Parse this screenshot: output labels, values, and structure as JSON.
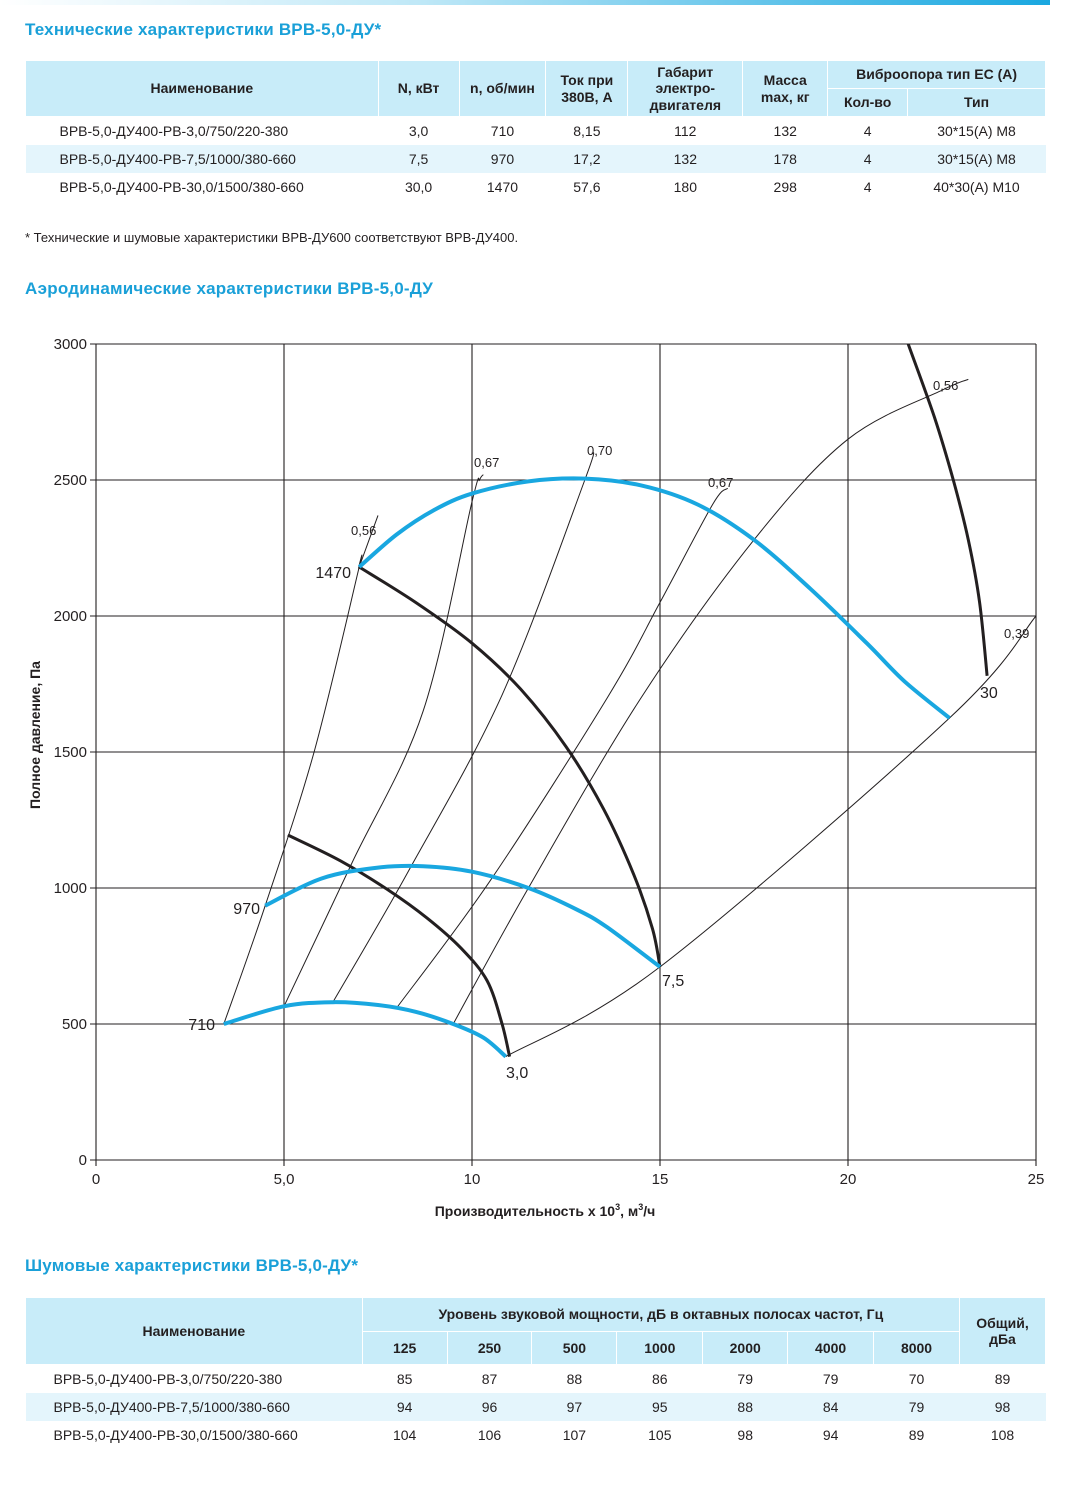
{
  "tech": {
    "title": "Технические характеристики ВРВ-5,0-ДУ*",
    "headers": {
      "name": "Наименование",
      "power": "N, кВт",
      "rpm": "n, об/мин",
      "current_l1": "Ток при",
      "current_l2": "380В, А",
      "size_l1": "Габарит",
      "size_l2": "электро-",
      "size_l3": "двигателя",
      "mass_l1": "Масса",
      "mass_l2": "max, кг",
      "vibro": "Виброопора тип ЕС (А)",
      "qty": "Кол-во",
      "type": "Тип"
    },
    "rows": [
      {
        "name": "ВРВ-5,0-ДУ400-РВ-3,0/750/220-380",
        "power": "3,0",
        "rpm": "710",
        "current": "8,15",
        "size": "112",
        "mass": "132",
        "qty": "4",
        "type": "30*15(А) М8"
      },
      {
        "name": "ВРВ-5,0-ДУ400-РВ-7,5/1000/380-660",
        "power": "7,5",
        "rpm": "970",
        "current": "17,2",
        "size": "132",
        "mass": "178",
        "qty": "4",
        "type": "30*15(А) М8"
      },
      {
        "name": "ВРВ-5,0-ДУ400-РВ-30,0/1500/380-660",
        "power": "30,0",
        "rpm": "1470",
        "current": "57,6",
        "size": "180",
        "mass": "298",
        "qty": "4",
        "type": "40*30(А) М10"
      }
    ],
    "note": "* Технические и шумовые характеристики ВРВ-ДУ600 соответствуют ВРВ-ДУ400."
  },
  "aero": {
    "title": "Аэродинамические характеристики ВРВ-5,0-ДУ"
  },
  "chart_data": {
    "type": "line",
    "xlabel_main": "Производительность х 10",
    "xlabel_sup": "3",
    "xlabel_tail": ", м",
    "xlabel_sup2": "3",
    "xlabel_end": "/ч",
    "ylabel": "Полное давление, Па",
    "xlim": [
      0,
      25
    ],
    "ylim": [
      0,
      3000
    ],
    "x_ticks": [
      "0",
      "5,0",
      "10",
      "15",
      "20",
      "25"
    ],
    "y_ticks": [
      "0",
      "500",
      "1000",
      "1500",
      "2000",
      "2500",
      "3000"
    ],
    "grid": true,
    "colors": {
      "speed_curves": "#19a7e0",
      "power_curves": "#231f20",
      "grid": "#231f20"
    },
    "speed_curves": [
      {
        "label": "710",
        "points": [
          [
            3.4,
            500
          ],
          [
            5.0,
            565
          ],
          [
            6.3,
            580
          ],
          [
            7.5,
            570
          ],
          [
            8.5,
            545
          ],
          [
            9.5,
            500
          ],
          [
            10.3,
            450
          ],
          [
            10.9,
            380
          ]
        ]
      },
      {
        "label": "970",
        "points": [
          [
            4.5,
            935
          ],
          [
            6.0,
            1035
          ],
          [
            7.5,
            1075
          ],
          [
            8.7,
            1080
          ],
          [
            10.0,
            1060
          ],
          [
            11.5,
            1000
          ],
          [
            12.8,
            920
          ],
          [
            13.6,
            855
          ],
          [
            15.0,
            710
          ]
        ]
      },
      {
        "label": "1470",
        "points": [
          [
            7.0,
            2180
          ],
          [
            8.0,
            2300
          ],
          [
            9.0,
            2390
          ],
          [
            10.0,
            2450
          ],
          [
            11.5,
            2495
          ],
          [
            13.0,
            2505
          ],
          [
            14.5,
            2480
          ],
          [
            16.0,
            2410
          ],
          [
            17.5,
            2280
          ],
          [
            19.0,
            2100
          ],
          [
            20.5,
            1900
          ],
          [
            21.5,
            1760
          ],
          [
            22.7,
            1625
          ]
        ]
      }
    ],
    "power_curves": [
      {
        "label": "3,0",
        "points": [
          [
            5.1,
            1195
          ],
          [
            6.5,
            1100
          ],
          [
            7.8,
            990
          ],
          [
            8.8,
            890
          ],
          [
            9.7,
            780
          ],
          [
            10.4,
            660
          ],
          [
            10.8,
            500
          ],
          [
            11.0,
            380
          ]
        ]
      },
      {
        "label": "7,5",
        "points": [
          [
            7.0,
            2180
          ],
          [
            8.5,
            2050
          ],
          [
            10.0,
            1900
          ],
          [
            11.3,
            1730
          ],
          [
            12.5,
            1520
          ],
          [
            13.5,
            1290
          ],
          [
            14.3,
            1050
          ],
          [
            14.8,
            850
          ],
          [
            15.0,
            710
          ]
        ]
      },
      {
        "label": "30",
        "points": [
          [
            21.6,
            3000
          ],
          [
            22.3,
            2730
          ],
          [
            22.8,
            2500
          ],
          [
            23.2,
            2280
          ],
          [
            23.5,
            2050
          ],
          [
            23.7,
            1780
          ]
        ]
      }
    ],
    "efficiency_lines": [
      {
        "label": "0,56",
        "points": [
          [
            3.4,
            500
          ],
          [
            4.5,
            935
          ],
          [
            5.8,
            1500
          ],
          [
            7.0,
            2180
          ],
          [
            7.0,
            2180
          ],
          [
            7.5,
            2370
          ]
        ]
      },
      {
        "label": "0,67",
        "points": [
          [
            5.0,
            565
          ],
          [
            6.8,
            1090
          ],
          [
            8.7,
            1650
          ],
          [
            10.0,
            2420
          ],
          [
            10.2,
            2500
          ],
          [
            10.3,
            2520
          ]
        ]
      },
      {
        "label": "0,70",
        "points": [
          [
            6.3,
            580
          ],
          [
            8.3,
            1060
          ],
          [
            10.8,
            1710
          ],
          [
            13.0,
            2500
          ],
          [
            13.2,
            2600
          ]
        ]
      },
      {
        "label": "0,67",
        "points": [
          [
            8.0,
            560
          ],
          [
            10.5,
            1030
          ],
          [
            13.6,
            1700
          ],
          [
            15.0,
            2050
          ],
          [
            16.4,
            2410
          ],
          [
            16.8,
            2470
          ]
        ]
      },
      {
        "label": "0,56",
        "points": [
          [
            9.5,
            500
          ],
          [
            11.5,
            1000
          ],
          [
            14.5,
            1700
          ],
          [
            17.5,
            2280
          ],
          [
            20.0,
            2650
          ],
          [
            22.5,
            2830
          ],
          [
            23.2,
            2870
          ]
        ]
      },
      {
        "label": "0,39",
        "points": [
          [
            10.9,
            380
          ],
          [
            15.0,
            710
          ],
          [
            22.7,
            1625
          ],
          [
            25.0,
            2000
          ]
        ]
      }
    ],
    "labels": {
      "rpm_710": "710",
      "rpm_970": "970",
      "rpm_1470": "1470",
      "pw_30": "3,0",
      "pw_75": "7,5",
      "pw_300": "30",
      "eff_056a": "0,56",
      "eff_067a": "0,67",
      "eff_070": "0,70",
      "eff_067b": "0,67",
      "eff_056b": "0,56",
      "eff_039": "0,39"
    }
  },
  "noise": {
    "title": "Шумовые характеристики ВРВ-5,0-ДУ*",
    "headers": {
      "name": "Наименование",
      "level": "Уровень звуковой мощности, дБ в октавных полосах частот, Гц",
      "total_l1": "Общий,",
      "total_l2": "дБа",
      "f125": "125",
      "f250": "250",
      "f500": "500",
      "f1000": "1000",
      "f2000": "2000",
      "f4000": "4000",
      "f8000": "8000"
    },
    "rows": [
      {
        "name": "ВРВ-5,0-ДУ400-РВ-3,0/750/220-380",
        "v125": "85",
        "v250": "87",
        "v500": "88",
        "v1000": "86",
        "v2000": "79",
        "v4000": "79",
        "v8000": "70",
        "total": "89"
      },
      {
        "name": "ВРВ-5,0-ДУ400-РВ-7,5/1000/380-660",
        "v125": "94",
        "v250": "96",
        "v500": "97",
        "v1000": "95",
        "v2000": "88",
        "v4000": "84",
        "v8000": "79",
        "total": "98"
      },
      {
        "name": "ВРВ-5,0-ДУ400-РВ-30,0/1500/380-660",
        "v125": "104",
        "v250": "106",
        "v500": "107",
        "v1000": "105",
        "v2000": "98",
        "v4000": "94",
        "v8000": "89",
        "total": "108"
      }
    ]
  }
}
